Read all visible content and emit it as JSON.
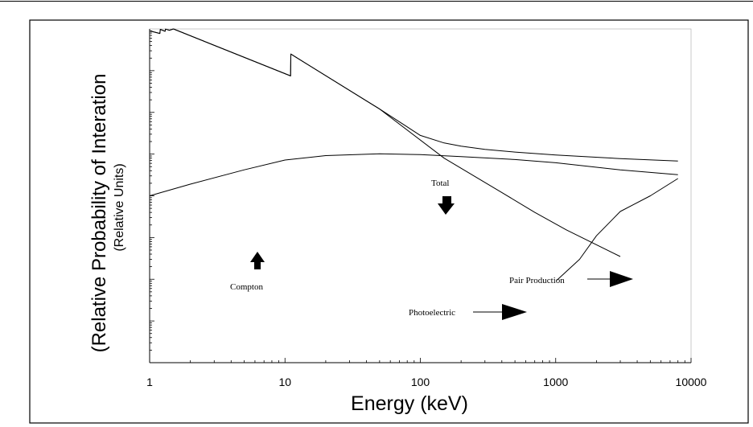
{
  "chart_data": {
    "type": "line",
    "title": "",
    "xlabel": "Energy (keV)",
    "ylabel": "(Relative Probability of Interation",
    "ylabel_sub": "(Relative Units)",
    "x_scale": "log",
    "y_scale": "log",
    "xlim": [
      1,
      10000
    ],
    "y_decades": 8,
    "x_ticks": [
      "1",
      "10",
      "100",
      "1000",
      "10000"
    ],
    "grid": false,
    "legend": "none",
    "series": [
      {
        "key": "photoelectric",
        "x": [
          1,
          1.19,
          1.2,
          1.3,
          1.31,
          1.4,
          1.5,
          11,
          11.05,
          50,
          150,
          400,
          700,
          1200,
          3000
        ],
        "y": [
          0.9,
          0.78,
          0.98,
          0.88,
          0.99,
          0.93,
          1.0,
          0.075,
          0.25,
          0.012,
          0.0008,
          0.00012,
          4e-05,
          1.52e-05,
          3.5e-06
        ]
      },
      {
        "key": "total",
        "x": [
          1,
          1.19,
          1.2,
          1.3,
          1.31,
          1.4,
          1.5,
          11,
          11.05,
          50,
          100,
          150,
          200,
          300,
          500,
          1000,
          3000,
          8000
        ],
        "y": [
          0.9,
          0.78,
          0.98,
          0.88,
          0.99,
          0.93,
          1.0,
          0.075,
          0.25,
          0.012,
          0.0028,
          0.00185,
          0.00155,
          0.0013,
          0.00112,
          0.00095,
          0.00078,
          0.00068
        ]
      },
      {
        "key": "compton",
        "x": [
          1,
          2,
          5,
          10,
          20,
          50,
          100,
          200,
          500,
          1000,
          3000,
          8000
        ],
        "y": [
          0.0001,
          0.00019,
          0.00042,
          0.00072,
          0.00092,
          0.00102,
          0.00097,
          0.00087,
          0.00074,
          0.00062,
          0.00042,
          0.00032
        ]
      },
      {
        "key": "pair_production",
        "x": [
          1022,
          1500,
          2000,
          3000,
          5000,
          8000
        ],
        "y": [
          9.5e-07,
          3e-06,
          1.1e-05,
          4.2e-05,
          0.0001,
          0.00026
        ]
      }
    ],
    "annotations": [
      {
        "key": "total",
        "text": "Total"
      },
      {
        "key": "compton",
        "text": "Compton"
      },
      {
        "key": "pair_production",
        "text": "Pair Production"
      },
      {
        "key": "photoelectric",
        "text": "Photoelectric"
      }
    ]
  }
}
